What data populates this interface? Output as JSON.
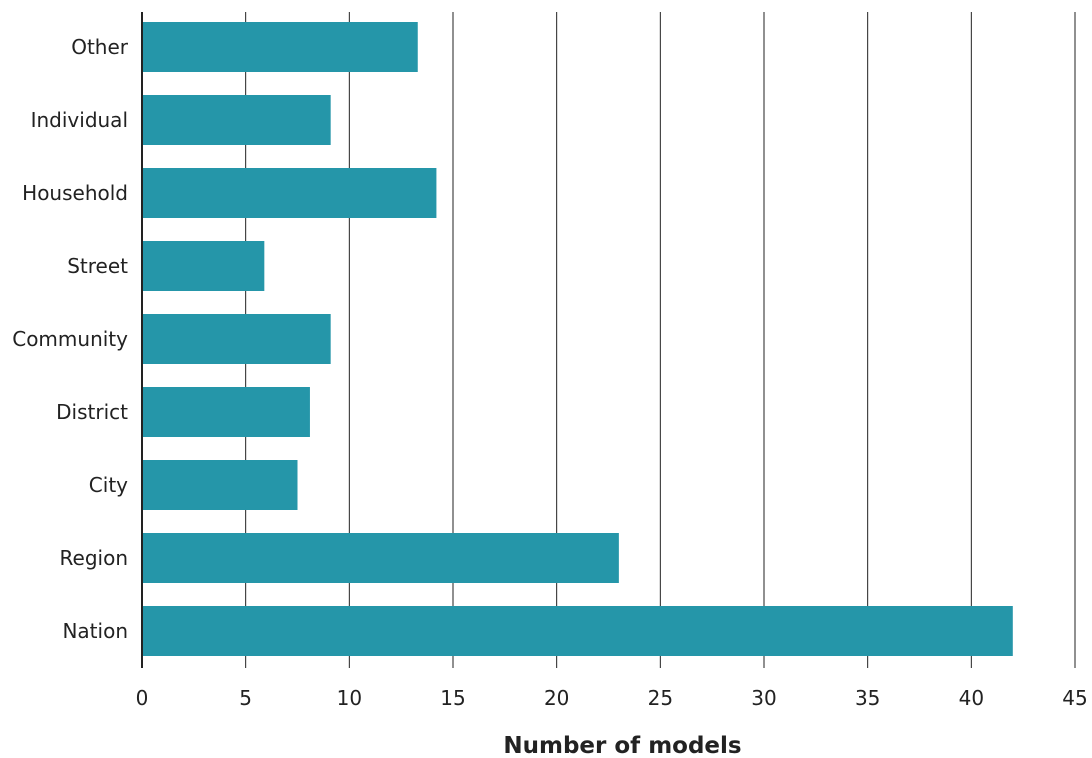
{
  "chart_data": {
    "type": "bar",
    "orientation": "horizontal",
    "categories": [
      "Other",
      "Individual",
      "Household",
      "Street",
      "Community",
      "District",
      "City",
      "Region",
      "Nation"
    ],
    "values": [
      13.3,
      9.1,
      14.2,
      5.9,
      9.1,
      8.1,
      7.5,
      23,
      42
    ],
    "xlabel": "Number of models",
    "ylabel": "",
    "xlim": [
      0,
      45
    ],
    "xticks": [
      0,
      5,
      10,
      15,
      20,
      25,
      30,
      35,
      40,
      45
    ],
    "grid": "vertical",
    "legend": "none",
    "bar_color": "#2596a9",
    "grid_color": "#222222"
  }
}
